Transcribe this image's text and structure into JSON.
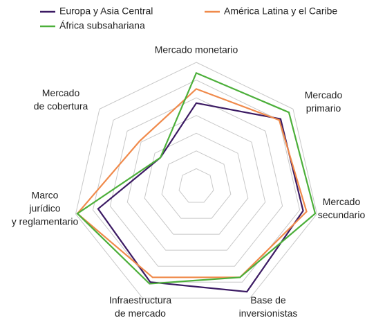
{
  "chart_data": {
    "type": "radar",
    "categories": [
      [
        "Mercado monetario"
      ],
      [
        "Mercado",
        "primario"
      ],
      [
        "Mercado",
        "secundario"
      ],
      [
        "Base de",
        "inversionistas"
      ],
      [
        "Infraestructura",
        "de mercado"
      ],
      [
        "Marco",
        "jurídico",
        "y reglamentario"
      ],
      [
        "Mercado",
        "de cobertura"
      ]
    ],
    "series": [
      {
        "name": "Europa y Asia Central",
        "color": "#3b1a63",
        "values": [
          4.7,
          6.1,
          6.2,
          6.6,
          6.0,
          5.7,
          2.6
        ]
      },
      {
        "name": "América Latina y el Caribe",
        "color": "#f08a4b",
        "values": [
          5.5,
          6.0,
          6.4,
          5.7,
          5.7,
          6.9,
          4.1
        ]
      },
      {
        "name": "África subsahariana",
        "color": "#4caf3a",
        "values": [
          6.4,
          6.7,
          6.9,
          5.7,
          6.1,
          6.9,
          2.6
        ]
      }
    ],
    "ylim": [
      0,
      7
    ],
    "yticks": [
      1,
      2,
      3,
      4,
      5,
      6,
      7
    ],
    "grid": true
  }
}
